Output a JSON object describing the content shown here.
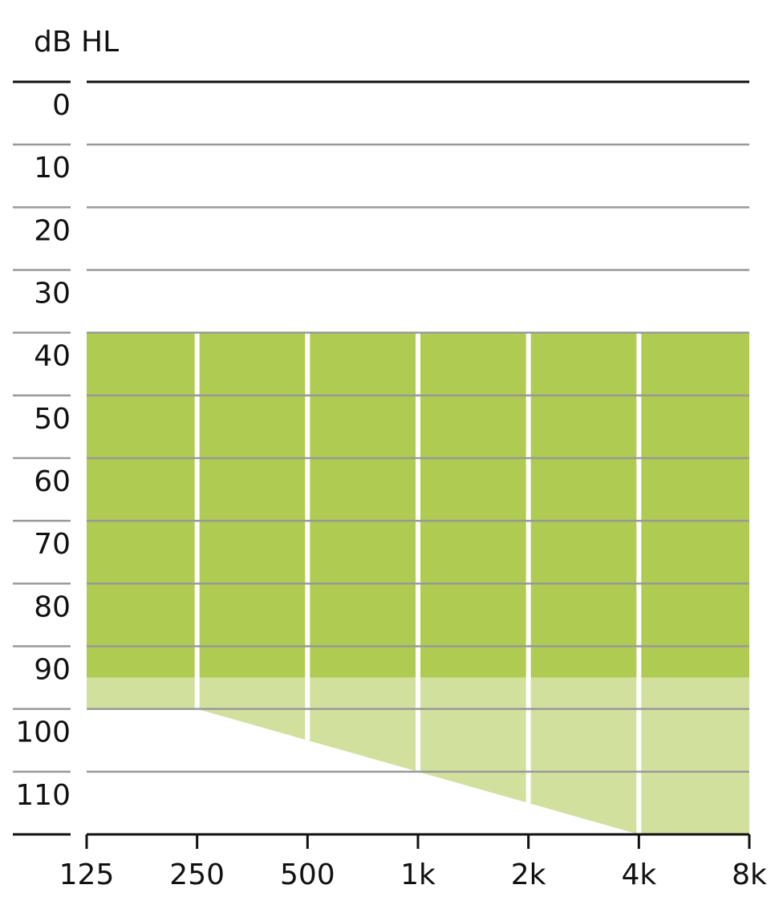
{
  "chart_data": {
    "type": "band",
    "y_label": "dB HL",
    "categories": [
      "125",
      "250",
      "500",
      "1k",
      "2k",
      "4k",
      "8k"
    ],
    "series": [
      {
        "color": "#b0cb52",
        "base": [
          40,
          40,
          40,
          40,
          40,
          40,
          40
        ],
        "values": [
          95,
          95,
          95,
          95,
          95,
          95,
          95
        ]
      },
      {
        "color": "#d1e09d",
        "base": [
          95,
          95,
          95,
          95,
          95,
          95,
          95
        ],
        "values": [
          100,
          100,
          105,
          110,
          115,
          120,
          120
        ]
      }
    ],
    "ylim": [
      0,
      120
    ],
    "yticks": [
      0,
      10,
      20,
      30,
      40,
      50,
      60,
      70,
      80,
      90,
      100,
      110
    ],
    "y_inverted": true,
    "grid": true
  }
}
